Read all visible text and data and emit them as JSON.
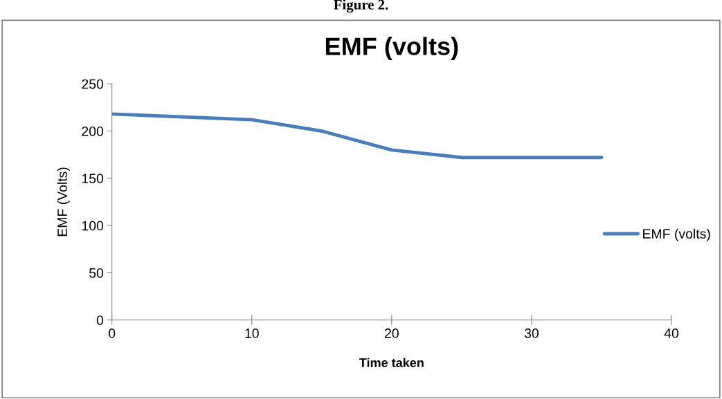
{
  "chart_data": {
    "type": "line",
    "title": "EMF (volts)",
    "xlabel": "Time taken",
    "ylabel": "EMF (Volts)",
    "annotations": [
      "Figure 2."
    ],
    "x": [
      0,
      5,
      10,
      15,
      20,
      25,
      30,
      35
    ],
    "series": [
      {
        "name": "EMF (volts)",
        "color": "#4a7ebb",
        "values": [
          218,
          215,
          212,
          200,
          180,
          172,
          172,
          172
        ]
      }
    ],
    "xlim": [
      0,
      40
    ],
    "xticks": [
      0,
      10,
      20,
      30,
      40
    ],
    "ylim": [
      0,
      250
    ],
    "yticks": [
      0,
      50,
      100,
      150,
      200,
      250
    ],
    "grid": false,
    "legend": "right",
    "marker": "none",
    "line_style": "solid"
  }
}
